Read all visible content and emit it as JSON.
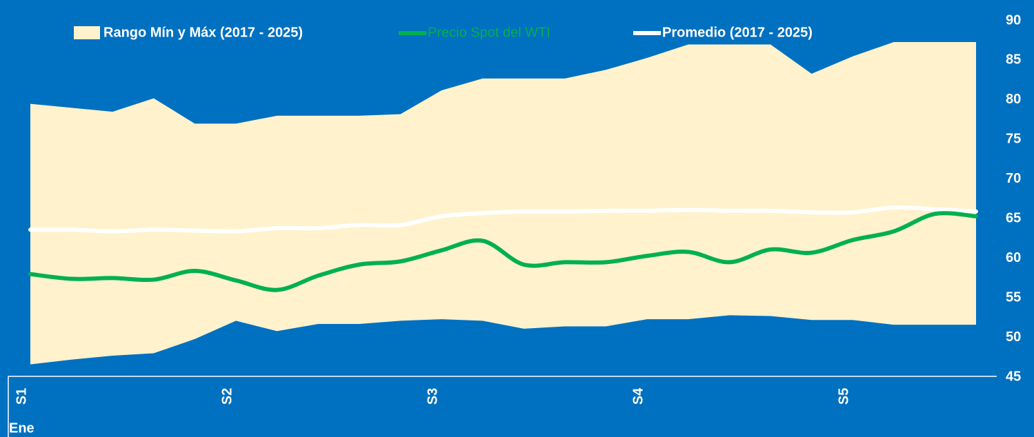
{
  "chart_data": {
    "type": "line",
    "categories": [
      "S1",
      null,
      null,
      null,
      null,
      "S2",
      null,
      null,
      null,
      null,
      "S3",
      null,
      null,
      null,
      null,
      "S4",
      null,
      null,
      null,
      null,
      "S5",
      null,
      null,
      null
    ],
    "x_group_label": "Ene",
    "band": {
      "name": "Rango Mín y Máx (2017 - 2025)",
      "color": "#FFF2CC",
      "high": [
        79.5,
        79,
        78.5,
        80.2,
        77,
        77,
        78,
        78,
        78,
        78.2,
        81.2,
        82.7,
        82.7,
        82.7,
        83.8,
        85.3,
        87,
        87,
        87,
        83.3,
        85.5,
        87.3,
        87.3,
        87.3
      ],
      "low": [
        46.6,
        47.2,
        47.7,
        48,
        49.8,
        52.1,
        50.8,
        51.7,
        51.7,
        52.1,
        52.3,
        52.1,
        51.1,
        51.4,
        51.4,
        52.3,
        52.3,
        52.8,
        52.7,
        52.2,
        52.2,
        51.6,
        51.6,
        51.6
      ]
    },
    "series": [
      {
        "name": "Precio Spot del WTI",
        "color": "#00B050",
        "values": [
          58,
          57.4,
          57.5,
          57.3,
          58.4,
          57.2,
          56,
          57.8,
          59.2,
          59.6,
          61,
          62.2,
          59.2,
          59.5,
          59.5,
          60.3,
          60.8,
          59.5,
          61.1,
          60.7,
          62.3,
          63.4,
          65.6,
          65.3
        ]
      },
      {
        "name": "Promedio (2017 - 2025)",
        "color": "#FFFFFF",
        "values": [
          63.6,
          63.6,
          63.4,
          63.6,
          63.5,
          63.4,
          63.8,
          63.8,
          64.2,
          64.2,
          65.3,
          65.7,
          65.9,
          65.9,
          66,
          66,
          66.1,
          66,
          66,
          65.8,
          65.8,
          66.4,
          66.2,
          65.9
        ]
      }
    ],
    "ylim": [
      45,
      90
    ],
    "yticks": [
      45,
      50,
      55,
      60,
      65,
      70,
      75,
      80,
      85,
      90
    ],
    "background": "#0070C0",
    "axis_color": "#FFFFFF"
  }
}
